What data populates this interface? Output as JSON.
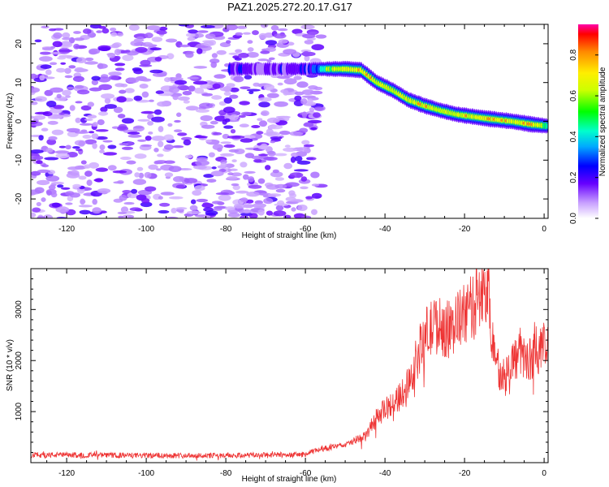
{
  "title": "PAZ1.2025.272.20.17.G17",
  "chart_data": [
    {
      "type": "heatmap",
      "name": "spectrogram",
      "xlabel": "Height of straight line (km)",
      "ylabel": "Frequency (Hz)",
      "xlim": [
        -129,
        1
      ],
      "ylim": [
        -25,
        25
      ],
      "xticks": [
        -120,
        -100,
        -80,
        -60,
        -40,
        -20,
        0
      ],
      "xtick_labels": [
        "-120",
        "-100",
        "-80",
        "-60",
        "-40",
        "-20",
        "0"
      ],
      "yticks": [
        -20,
        -10,
        0,
        10,
        20
      ],
      "ytick_labels": [
        "-20",
        "-10",
        "0",
        "10",
        "20"
      ],
      "noise_region_x": [
        -129,
        -56
      ],
      "ridge": [
        {
          "x": -79,
          "y": 13.5,
          "amp": 0.25
        },
        {
          "x": -70,
          "y": 13.5,
          "amp": 0.2
        },
        {
          "x": -60,
          "y": 13.5,
          "amp": 0.22
        },
        {
          "x": -55,
          "y": 13.5,
          "amp": 0.55
        },
        {
          "x": -50,
          "y": 13.5,
          "amp": 0.8
        },
        {
          "x": -46,
          "y": 13.2,
          "amp": 0.85
        },
        {
          "x": -42,
          "y": 10.0,
          "amp": 0.75
        },
        {
          "x": -38,
          "y": 8.0,
          "amp": 0.75
        },
        {
          "x": -34,
          "y": 5.5,
          "amp": 0.75
        },
        {
          "x": -30,
          "y": 4.0,
          "amp": 0.8
        },
        {
          "x": -26,
          "y": 2.8,
          "amp": 0.7
        },
        {
          "x": -22,
          "y": 1.8,
          "amp": 0.75
        },
        {
          "x": -15,
          "y": 0.8,
          "amp": 0.85
        },
        {
          "x": -8,
          "y": 0.0,
          "amp": 0.8
        },
        {
          "x": -3,
          "y": -0.8,
          "amp": 0.85
        },
        {
          "x": 1,
          "y": -1.2,
          "amp": 0.6
        }
      ],
      "colorbar": {
        "label": "Normalized spectral amplitude",
        "range": [
          0.0,
          0.95
        ],
        "ticks": [
          0.0,
          0.2,
          0.4,
          0.6,
          0.8
        ],
        "tick_labels": [
          "0.0",
          "0.2",
          "0.4",
          "0.6",
          "0.8"
        ]
      }
    },
    {
      "type": "line",
      "name": "snr",
      "xlabel": "Height of straight line (km)",
      "ylabel": "SNR (10 * v/v)",
      "xlim": [
        -129,
        1
      ],
      "ylim": [
        0,
        3800
      ],
      "xticks": [
        -120,
        -100,
        -80,
        -60,
        -40,
        -20,
        0
      ],
      "xtick_labels": [
        "-120",
        "-100",
        "-80",
        "-60",
        "-40",
        "-20",
        "0"
      ],
      "yticks": [
        1000,
        2000,
        3000
      ],
      "ytick_labels": [
        "1000",
        "2000",
        "3000"
      ],
      "color": "#ee3333",
      "envelope": {
        "x": [
          -129,
          -120,
          -100,
          -80,
          -60,
          -57,
          -50,
          -45,
          -42,
          -39,
          -36,
          -33,
          -30,
          -27,
          -24,
          -20,
          -17,
          -15,
          -14,
          -13,
          -12,
          -10,
          -8,
          -6,
          -4,
          -2,
          1
        ],
        "y": [
          150,
          150,
          140,
          140,
          160,
          250,
          350,
          500,
          900,
          1100,
          1300,
          1800,
          2500,
          2700,
          2600,
          2900,
          3100,
          3300,
          3400,
          2500,
          1900,
          1700,
          2000,
          2100,
          2000,
          2200,
          2300
        ]
      }
    }
  ]
}
